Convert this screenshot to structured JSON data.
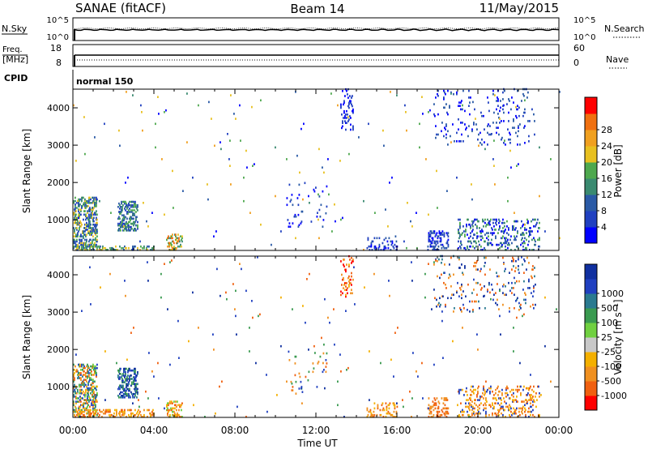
{
  "header": {
    "station": "SANAE (fitACF)",
    "beam": "Beam 14",
    "date": "11/May/2015"
  },
  "strip_panels": {
    "nsky": {
      "left_label": "N.Sky",
      "left_ticks": [
        "10^5",
        "10^0"
      ],
      "right_label": "N.Search",
      "right_ticks": [
        "10^5",
        "10^0"
      ]
    },
    "freq": {
      "left_label_1": "Freq.",
      "left_label_2": "[MHz]",
      "left_ticks": [
        "18",
        "8"
      ],
      "right_label": "Nave",
      "right_ticks": [
        "60",
        "0"
      ]
    },
    "cpid": {
      "label": "CPID",
      "value": "normal 150"
    }
  },
  "colors": {
    "power": [
      "#0000ff",
      "#2040c0",
      "#2a5aa6",
      "#3a8a70",
      "#4ea84e",
      "#e8c020",
      "#f0a020",
      "#f07010",
      "#ff0000"
    ],
    "velocity": [
      "#ff0000",
      "#f06010",
      "#f09020",
      "#f4b000",
      "#c8c8c8",
      "#70d040",
      "#3a9a50",
      "#2a7a90",
      "#2040c0",
      "#1030a0"
    ]
  },
  "chart_data": [
    {
      "type": "heatmap",
      "name": "power",
      "ylabel": "Slant Range [km]",
      "xlabel": "",
      "x_ticks": [
        "00:00",
        "04:00",
        "08:00",
        "12:00",
        "16:00",
        "20:00",
        "00:00"
      ],
      "x_range_hours": [
        0,
        24
      ],
      "y_range_km": [
        180,
        4500
      ],
      "y_ticks": [
        1000,
        2000,
        3000,
        4000
      ],
      "colorbar": {
        "label": "Power [dB]",
        "ticks": [
          "4",
          "8",
          "12",
          "16",
          "20",
          "24",
          "28"
        ]
      },
      "regions": [
        {
          "t": [
            0.0,
            1.2
          ],
          "r": [
            180,
            1600
          ],
          "density": 0.35,
          "levels": [
            1,
            2,
            3,
            4,
            5
          ]
        },
        {
          "t": [
            2.2,
            3.2
          ],
          "r": [
            700,
            1500
          ],
          "density": 0.35,
          "levels": [
            1,
            2,
            3,
            4
          ]
        },
        {
          "t": [
            4.6,
            5.4
          ],
          "r": [
            180,
            600
          ],
          "density": 0.3,
          "levels": [
            3,
            4,
            5,
            6,
            7
          ]
        },
        {
          "t": [
            0.0,
            4.0
          ],
          "r": [
            180,
            300
          ],
          "density": 0.25,
          "levels": [
            2,
            3,
            4,
            5
          ]
        },
        {
          "t": [
            10.5,
            12.5
          ],
          "r": [
            800,
            2000
          ],
          "density": 0.03,
          "levels": [
            0,
            1,
            2
          ]
        },
        {
          "t": [
            13.2,
            13.8
          ],
          "r": [
            3400,
            4500
          ],
          "density": 0.12,
          "levels": [
            0,
            1
          ]
        },
        {
          "t": [
            14.5,
            16.0
          ],
          "r": [
            180,
            550
          ],
          "density": 0.15,
          "levels": [
            0,
            1,
            2
          ]
        },
        {
          "t": [
            17.8,
            22.8
          ],
          "r": [
            3000,
            4500
          ],
          "density": 0.04,
          "levels": [
            0,
            1,
            2
          ]
        },
        {
          "t": [
            17.5,
            18.5
          ],
          "r": [
            180,
            700
          ],
          "density": 0.25,
          "levels": [
            0,
            1,
            2
          ]
        },
        {
          "t": [
            19.0,
            23.0
          ],
          "r": [
            180,
            1000
          ],
          "density": 0.16,
          "levels": [
            0,
            1,
            2,
            3,
            4
          ]
        },
        {
          "t": [
            0.0,
            24.0
          ],
          "r": [
            180,
            4500
          ],
          "density": 0.003,
          "levels": [
            0,
            1,
            2,
            3,
            4,
            5,
            6
          ]
        }
      ]
    },
    {
      "type": "heatmap",
      "name": "velocity",
      "ylabel": "Slant Range [km]",
      "xlabel": "Time UT",
      "x_ticks": [
        "00:00",
        "04:00",
        "08:00",
        "12:00",
        "16:00",
        "20:00",
        "00:00"
      ],
      "x_range_hours": [
        0,
        24
      ],
      "y_range_km": [
        180,
        4500
      ],
      "y_ticks": [
        1000,
        2000,
        3000,
        4000
      ],
      "colorbar": {
        "label": "Velocity [m s⁻¹]",
        "ticks": [
          "-1000",
          "-500",
          "-100",
          "-25",
          "25",
          "100",
          "500",
          "1000"
        ]
      },
      "regions": [
        {
          "t": [
            0.0,
            1.2
          ],
          "r": [
            180,
            1600
          ],
          "density": 0.35,
          "levels": [
            1,
            2,
            3,
            5,
            6,
            7,
            8
          ]
        },
        {
          "t": [
            2.2,
            3.2
          ],
          "r": [
            700,
            1500
          ],
          "density": 0.35,
          "levels": [
            6,
            7,
            8,
            9
          ]
        },
        {
          "t": [
            4.6,
            5.4
          ],
          "r": [
            180,
            600
          ],
          "density": 0.3,
          "levels": [
            1,
            2,
            3,
            5
          ]
        },
        {
          "t": [
            0.0,
            4.0
          ],
          "r": [
            180,
            400
          ],
          "density": 0.25,
          "levels": [
            1,
            2,
            3
          ]
        },
        {
          "t": [
            10.5,
            12.5
          ],
          "r": [
            800,
            2000
          ],
          "density": 0.03,
          "levels": [
            1,
            2,
            6,
            8
          ]
        },
        {
          "t": [
            13.2,
            13.8
          ],
          "r": [
            3400,
            4500
          ],
          "density": 0.12,
          "levels": [
            0,
            1,
            2,
            3
          ]
        },
        {
          "t": [
            14.5,
            16.0
          ],
          "r": [
            180,
            550
          ],
          "density": 0.15,
          "levels": [
            1,
            2,
            3
          ]
        },
        {
          "t": [
            17.8,
            22.8
          ],
          "r": [
            3000,
            4500
          ],
          "density": 0.04,
          "levels": [
            1,
            2,
            7,
            8,
            9
          ]
        },
        {
          "t": [
            17.5,
            18.5
          ],
          "r": [
            180,
            700
          ],
          "density": 0.25,
          "levels": [
            1,
            2
          ]
        },
        {
          "t": [
            19.0,
            23.0
          ],
          "r": [
            180,
            1000
          ],
          "density": 0.16,
          "levels": [
            1,
            2,
            3,
            8
          ]
        },
        {
          "t": [
            0.0,
            24.0
          ],
          "r": [
            180,
            4500
          ],
          "density": 0.003,
          "levels": [
            1,
            2,
            3,
            6,
            8,
            9
          ]
        }
      ]
    }
  ]
}
